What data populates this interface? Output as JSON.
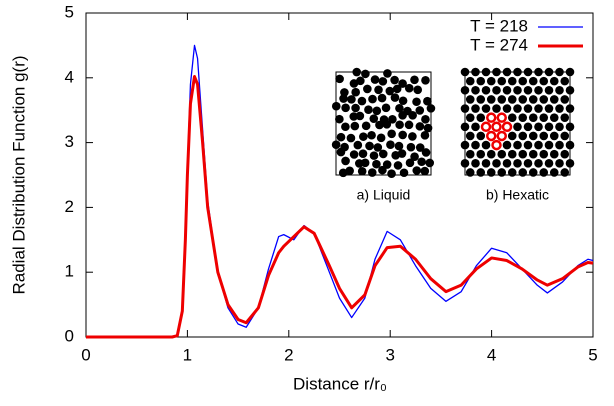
{
  "chart_data": {
    "type": "line",
    "y_label": "Radial Distribution Function g(r)",
    "x_label": "Distance r/r₀",
    "x": [
      0,
      0.5,
      0.85,
      0.9,
      0.95,
      0.98,
      1.0,
      1.03,
      1.07,
      1.1,
      1.15,
      1.2,
      1.3,
      1.4,
      1.5,
      1.58,
      1.7,
      1.8,
      1.9,
      1.95,
      2.05,
      2.15,
      2.25,
      2.4,
      2.5,
      2.62,
      2.75,
      2.85,
      2.97,
      3.1,
      3.25,
      3.4,
      3.55,
      3.7,
      3.85,
      4.0,
      4.15,
      4.3,
      4.45,
      4.55,
      4.7,
      4.85,
      4.95,
      5.0
    ],
    "series": [
      {
        "name": "T = 218",
        "color": "#0000ff",
        "width": 1.3,
        "values": [
          0,
          0,
          0,
          0.02,
          0.4,
          1.5,
          2.6,
          3.9,
          4.5,
          4.3,
          3.2,
          2.1,
          1.0,
          0.45,
          0.2,
          0.15,
          0.45,
          1.05,
          1.55,
          1.58,
          1.5,
          1.72,
          1.6,
          1.0,
          0.6,
          0.3,
          0.6,
          1.2,
          1.63,
          1.5,
          1.1,
          0.75,
          0.55,
          0.7,
          1.1,
          1.37,
          1.3,
          1.05,
          0.8,
          0.68,
          0.85,
          1.1,
          1.2,
          1.18
        ]
      },
      {
        "name": "T = 274",
        "color": "#ee0000",
        "width": 3,
        "values": [
          0,
          0,
          0,
          0.02,
          0.4,
          1.5,
          2.5,
          3.6,
          4.02,
          3.9,
          3.0,
          2.0,
          1.0,
          0.5,
          0.27,
          0.22,
          0.45,
          0.95,
          1.3,
          1.4,
          1.55,
          1.7,
          1.6,
          1.1,
          0.75,
          0.45,
          0.65,
          1.1,
          1.38,
          1.4,
          1.2,
          0.9,
          0.7,
          0.8,
          1.05,
          1.22,
          1.18,
          1.05,
          0.88,
          0.8,
          0.9,
          1.08,
          1.15,
          1.14
        ]
      }
    ],
    "xlim": [
      0,
      5
    ],
    "ylim": [
      0,
      5
    ],
    "xticks": [
      0,
      1,
      2,
      3,
      4,
      5
    ],
    "yticks": [
      0,
      1,
      2,
      3,
      4,
      5
    ],
    "legend": "top-right",
    "insets": [
      "a) Liquid",
      "b) Hexatic"
    ]
  }
}
